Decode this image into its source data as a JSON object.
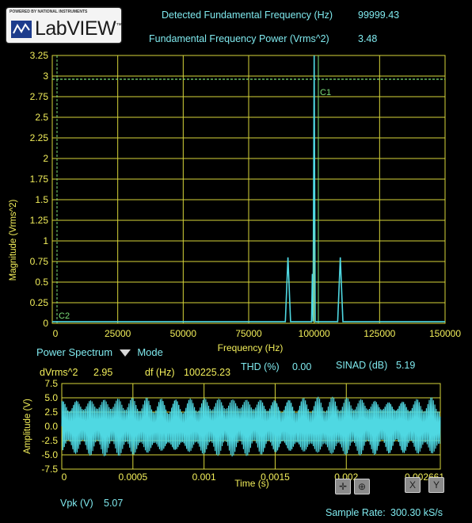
{
  "logo": {
    "powered_by": "POWERED BY NATIONAL INSTRUMENTS",
    "name": "LabVIEW"
  },
  "header": {
    "fund_freq_label": "Detected Fundamental Frequency (Hz)",
    "fund_freq_value": "99999.43",
    "fund_power_label": "Fundamental Frequency Power (Vrms^2)",
    "fund_power_value": "3.48"
  },
  "colors": {
    "grid": "#d8d63a",
    "trace": "#4fd8e2",
    "cursor": "#7ddf7a",
    "axis_text": "#f2ee5a",
    "label_text": "#7fe9ee"
  },
  "spectrum": {
    "ylabel": "Magnitude (Vrms^2)",
    "xlabel": "Frequency (Hz)",
    "yticks": [
      "0",
      "0.25",
      "0.5",
      "0.75",
      "1",
      "1.25",
      "1.5",
      "1.75",
      "2",
      "2.25",
      "2.5",
      "2.75",
      "3",
      "3.25"
    ],
    "xticks": [
      "0",
      "25000",
      "50000",
      "75000",
      "100000",
      "125000",
      "150000"
    ],
    "cursor1": "C1",
    "cursor2": "C2"
  },
  "mode": {
    "selected": "Power Spectrum",
    "label": "Mode"
  },
  "measurements": {
    "dvrms_label": "dVrms^2",
    "dvrms_value": "2.95",
    "df_label": "df (Hz)",
    "df_value": "100225.23",
    "thd_label": "THD (%)",
    "thd_value": "0.00",
    "sinad_label": "SINAD (dB)",
    "sinad_value": "5.19"
  },
  "time_plot": {
    "ylabel": "Amplitude (V)",
    "xlabel": "Time (s)",
    "yticks": [
      "-7.5",
      "-5.0",
      "-2.5",
      "0.0",
      "2.5",
      "5.0",
      "7.5"
    ],
    "xticks": [
      "0",
      "0.0005",
      "0.001",
      "0.0015",
      "0.002",
      "0.002661"
    ]
  },
  "footer": {
    "vpk_label": "Vpk (V)",
    "vpk_value": "5.07",
    "sample_rate_label": "Sample Rate:",
    "sample_rate_value": "300.30 kS/s"
  },
  "chart_data": [
    {
      "type": "line",
      "ylabel": "Magnitude (Vrms^2)",
      "xlabel": "Frequency (Hz)",
      "xlim": [
        0,
        150000
      ],
      "ylim": [
        0,
        3.25
      ],
      "grid": true,
      "series": [
        {
          "x": [
            0,
            89000,
            90000,
            91000,
            99000,
            100000,
            101000,
            109000,
            110000,
            111000,
            150000
          ],
          "y": [
            0,
            0,
            0.8,
            0,
            0.6,
            3.5,
            0,
            0,
            0.8,
            0,
            0
          ]
        }
      ],
      "cursors": [
        {
          "name": "C1",
          "x": 100000,
          "y": 2.95
        },
        {
          "name": "C2",
          "x": 0,
          "y": 0
        }
      ]
    },
    {
      "type": "line",
      "ylabel": "Amplitude (V)",
      "xlabel": "Time (s)",
      "xlim": [
        0,
        0.002661
      ],
      "ylim": [
        -7.5,
        7.5
      ],
      "grid": true,
      "series": [
        {
          "description": "AM sine, carrier 100 kHz, envelope 10 kHz",
          "peak": 5.07
        }
      ]
    }
  ]
}
